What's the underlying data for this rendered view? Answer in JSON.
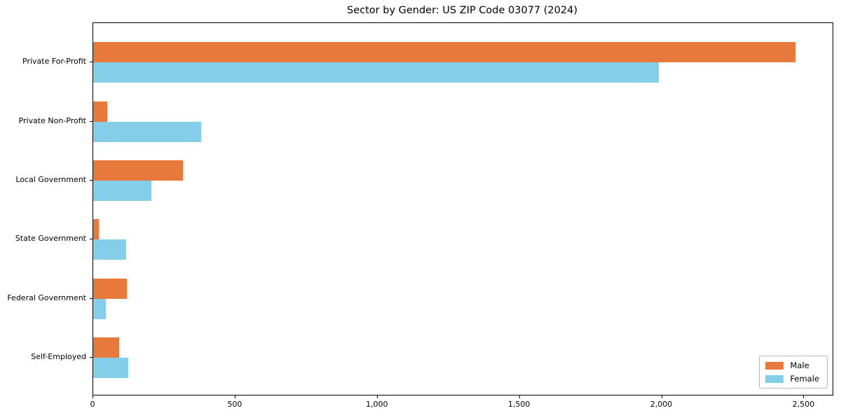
{
  "chart_data": {
    "type": "bar",
    "orientation": "horizontal",
    "title": "Sector by Gender: US ZIP Code 03077 (2024)",
    "categories": [
      "Private For-Profit",
      "Private Non-Profit",
      "Local Government",
      "State Government",
      "Federal Government",
      "Self-Employed"
    ],
    "series": [
      {
        "name": "Male",
        "color": "#E8793D",
        "values": [
          2470,
          50,
          315,
          20,
          118,
          90
        ]
      },
      {
        "name": "Female",
        "color": "#85CEE9",
        "values": [
          1990,
          380,
          205,
          115,
          45,
          122
        ]
      }
    ],
    "xlabel": "",
    "ylabel": "",
    "xlim": [
      0,
      2600
    ],
    "x_ticks": [
      0,
      500,
      1000,
      1500,
      2000,
      2500
    ],
    "x_tick_labels": [
      "0",
      "500",
      "1,000",
      "1,500",
      "2,000",
      "2,500"
    ],
    "grid": false,
    "legend_position": "lower right",
    "background_color": "#ffffff",
    "axis_color": "#000000"
  }
}
